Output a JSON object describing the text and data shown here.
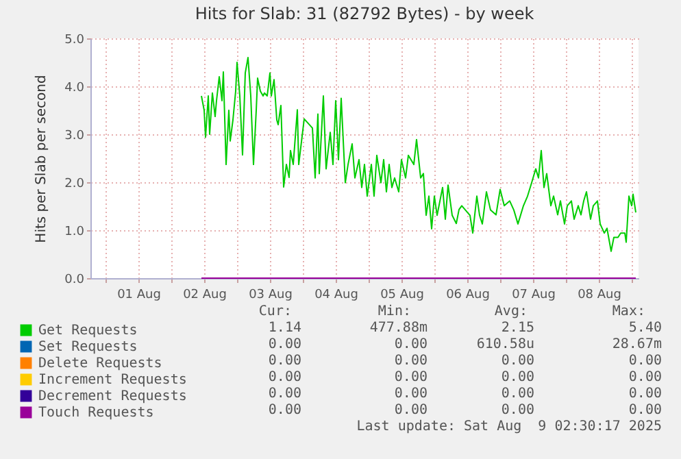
{
  "chart_data": {
    "type": "line",
    "title": "Hits for Slab: 31 (82792 Bytes) - by week",
    "ylabel": "Hits per Slab per second",
    "xlim": [
      "2025-07-31T18:30",
      "2025-08-09T02:30"
    ],
    "xticks": [
      {
        "value": "2025-08-01T00:00",
        "label": null
      },
      {
        "value": "2025-08-01T12:00",
        "label": "01 Aug"
      },
      {
        "value": "2025-08-02T00:00",
        "label": null
      },
      {
        "value": "2025-08-02T12:00",
        "label": "02 Aug"
      },
      {
        "value": "2025-08-03T00:00",
        "label": null
      },
      {
        "value": "2025-08-03T12:00",
        "label": "03 Aug"
      },
      {
        "value": "2025-08-04T00:00",
        "label": null
      },
      {
        "value": "2025-08-04T12:00",
        "label": "04 Aug"
      },
      {
        "value": "2025-08-05T00:00",
        "label": null
      },
      {
        "value": "2025-08-05T12:00",
        "label": "05 Aug"
      },
      {
        "value": "2025-08-06T00:00",
        "label": null
      },
      {
        "value": "2025-08-06T12:00",
        "label": "06 Aug"
      },
      {
        "value": "2025-08-07T00:00",
        "label": null
      },
      {
        "value": "2025-08-07T12:00",
        "label": "07 Aug"
      },
      {
        "value": "2025-08-08T00:00",
        "label": null
      },
      {
        "value": "2025-08-08T12:00",
        "label": "08 Aug"
      },
      {
        "value": "2025-08-09T00:00",
        "label": null
      }
    ],
    "ylim": [
      0,
      5
    ],
    "yticks": [
      {
        "value": 0,
        "label": "0.0"
      },
      {
        "value": 1,
        "label": "1.0"
      },
      {
        "value": 2,
        "label": "2.0"
      },
      {
        "value": 3,
        "label": "3.0"
      },
      {
        "value": 4,
        "label": "4.0"
      },
      {
        "value": 5,
        "label": "5.0"
      }
    ],
    "grid": true,
    "legend": "bottom",
    "series": [
      {
        "name": "Get Requests",
        "color": "#00cc00",
        "x": [
          "2025-08-02T11:00",
          "2025-08-02T12:00",
          "2025-08-02T12:30",
          "2025-08-02T13:30",
          "2025-08-02T14:00",
          "2025-08-02T15:00",
          "2025-08-02T16:00",
          "2025-08-02T16:30",
          "2025-08-02T17:30",
          "2025-08-02T18:30",
          "2025-08-02T19:00",
          "2025-08-02T20:00",
          "2025-08-02T21:00",
          "2025-08-02T21:30",
          "2025-08-02T22:30",
          "2025-08-02T23:30",
          "2025-08-03T00:00",
          "2025-08-03T01:00",
          "2025-08-03T02:00",
          "2025-08-03T03:00",
          "2025-08-03T04:00",
          "2025-08-03T05:00",
          "2025-08-03T06:00",
          "2025-08-03T07:00",
          "2025-08-03T07:30",
          "2025-08-03T08:30",
          "2025-08-03T09:30",
          "2025-08-03T10:00",
          "2025-08-03T11:00",
          "2025-08-03T12:00",
          "2025-08-03T12:30",
          "2025-08-03T13:30",
          "2025-08-03T14:30",
          "2025-08-03T15:00",
          "2025-08-03T16:00",
          "2025-08-03T17:00",
          "2025-08-03T18:00",
          "2025-08-03T19:00",
          "2025-08-03T19:30",
          "2025-08-03T20:30",
          "2025-08-03T22:00",
          "2025-08-03T22:30",
          "2025-08-04T00:30",
          "2025-08-04T03:30",
          "2025-08-04T04:30",
          "2025-08-04T05:30",
          "2025-08-04T06:00",
          "2025-08-04T07:30",
          "2025-08-04T08:30",
          "2025-08-04T10:00",
          "2025-08-04T11:00",
          "2025-08-04T12:00",
          "2025-08-04T13:00",
          "2025-08-04T14:00",
          "2025-08-04T15:30",
          "2025-08-04T16:30",
          "2025-08-04T18:00",
          "2025-08-04T19:00",
          "2025-08-04T20:30",
          "2025-08-04T21:30",
          "2025-08-04T22:30",
          "2025-08-04T23:30",
          "2025-08-05T01:00",
          "2025-08-05T02:00",
          "2025-08-05T03:00",
          "2025-08-05T04:30",
          "2025-08-05T05:30",
          "2025-08-05T06:30",
          "2025-08-05T07:30",
          "2025-08-05T08:30",
          "2025-08-05T09:30",
          "2025-08-05T11:00",
          "2025-08-05T12:00",
          "2025-08-05T13:30",
          "2025-08-05T14:30",
          "2025-08-05T16:30",
          "2025-08-05T17:30",
          "2025-08-05T19:00",
          "2025-08-05T20:00",
          "2025-08-05T21:00",
          "2025-08-05T22:00",
          "2025-08-05T23:00",
          "2025-08-06T00:00",
          "2025-08-06T01:00",
          "2025-08-06T02:00",
          "2025-08-06T03:00",
          "2025-08-06T04:00",
          "2025-08-06T05:00",
          "2025-08-06T06:30",
          "2025-08-06T08:00",
          "2025-08-06T09:00",
          "2025-08-06T10:00",
          "2025-08-06T13:00",
          "2025-08-06T14:00",
          "2025-08-06T15:30",
          "2025-08-06T16:30",
          "2025-08-06T17:30",
          "2025-08-06T19:00",
          "2025-08-06T20:30",
          "2025-08-06T22:30",
          "2025-08-07T00:00",
          "2025-08-07T01:30",
          "2025-08-07T03:30",
          "2025-08-07T05:00",
          "2025-08-07T06:30",
          "2025-08-07T08:30",
          "2025-08-07T10:00",
          "2025-08-07T11:30",
          "2025-08-07T13:00",
          "2025-08-07T14:00",
          "2025-08-07T15:00",
          "2025-08-07T16:00",
          "2025-08-07T17:00",
          "2025-08-07T18:30",
          "2025-08-07T19:30",
          "2025-08-07T21:00",
          "2025-08-07T22:00",
          "2025-08-07T23:30",
          "2025-08-08T00:30",
          "2025-08-08T02:00",
          "2025-08-08T03:00",
          "2025-08-08T04:30",
          "2025-08-08T05:30",
          "2025-08-08T06:30",
          "2025-08-08T07:30",
          "2025-08-08T09:00",
          "2025-08-08T10:00",
          "2025-08-08T11:30",
          "2025-08-08T12:30",
          "2025-08-08T14:00",
          "2025-08-08T15:00",
          "2025-08-08T16:30",
          "2025-08-08T17:30",
          "2025-08-08T19:00",
          "2025-08-08T20:00",
          "2025-08-08T21:30",
          "2025-08-08T22:00",
          "2025-08-08T23:00",
          "2025-08-09T00:00",
          "2025-08-09T00:30",
          "2025-08-09T01:30"
        ],
        "values": [
          3.8,
          3.5,
          2.94,
          3.8,
          3.0,
          3.86,
          3.37,
          3.7,
          4.2,
          3.7,
          4.3,
          2.37,
          3.5,
          2.86,
          3.3,
          3.9,
          4.5,
          3.8,
          2.57,
          4.28,
          4.6,
          3.8,
          2.37,
          3.5,
          4.17,
          3.9,
          3.8,
          3.86,
          3.8,
          4.28,
          3.8,
          4.14,
          3.3,
          3.2,
          3.6,
          1.9,
          2.37,
          2.1,
          2.66,
          2.37,
          3.51,
          2.37,
          3.32,
          3.13,
          2.09,
          3.42,
          2.18,
          3.8,
          2.28,
          3.04,
          2.37,
          3.7,
          2.47,
          3.75,
          1.99,
          2.37,
          2.8,
          2.09,
          2.47,
          1.89,
          2.37,
          1.71,
          2.37,
          1.71,
          2.56,
          1.99,
          2.47,
          1.8,
          2.37,
          1.89,
          2.09,
          1.8,
          2.47,
          2.09,
          2.56,
          2.37,
          2.89,
          2.09,
          2.18,
          1.31,
          1.71,
          1.03,
          1.71,
          1.31,
          1.6,
          1.89,
          1.23,
          1.94,
          1.31,
          1.14,
          1.43,
          1.51,
          1.31,
          0.94,
          1.71,
          1.31,
          1.13,
          1.8,
          1.42,
          1.32,
          1.85,
          1.51,
          1.61,
          1.42,
          1.13,
          1.51,
          1.71,
          1.99,
          2.28,
          2.09,
          2.66,
          1.89,
          2.18,
          1.51,
          1.71,
          1.32,
          1.61,
          1.13,
          1.51,
          1.61,
          1.23,
          1.51,
          1.32,
          1.61,
          1.8,
          1.23,
          1.51,
          1.61,
          1.13,
          0.94,
          1.04,
          0.56,
          0.85,
          0.85,
          0.94,
          0.94,
          0.75,
          1.71,
          1.51,
          1.75,
          1.37
        ]
      },
      {
        "name": "Set Requests",
        "color": "#0066b3"
      },
      {
        "name": "Delete Requests",
        "color": "#ff8000"
      },
      {
        "name": "Increment Requests",
        "color": "#ffcc00"
      },
      {
        "name": "Decrement Requests",
        "color": "#330099"
      },
      {
        "name": "Touch Requests",
        "color": "#990099",
        "x": [
          "2025-08-02T11:00",
          "2025-08-09T01:30"
        ],
        "values": [
          0,
          0
        ]
      }
    ],
    "annotations": [
      "Cur:",
      "Min:",
      "Avg:",
      "Max:",
      "1.14",
      "477.88m",
      "2.15",
      "5.40",
      "0.00",
      "0.00",
      "610.58u",
      "28.67m",
      "0.00",
      "0.00",
      "0.00",
      "0.00",
      "0.00",
      "0.00",
      "0.00",
      "0.00",
      "0.00",
      "0.00",
      "0.00",
      "0.00",
      "0.00",
      "0.00",
      "0.00",
      "0.00",
      "Last update: Sat Aug  9 02:30:17 2025"
    ]
  }
}
